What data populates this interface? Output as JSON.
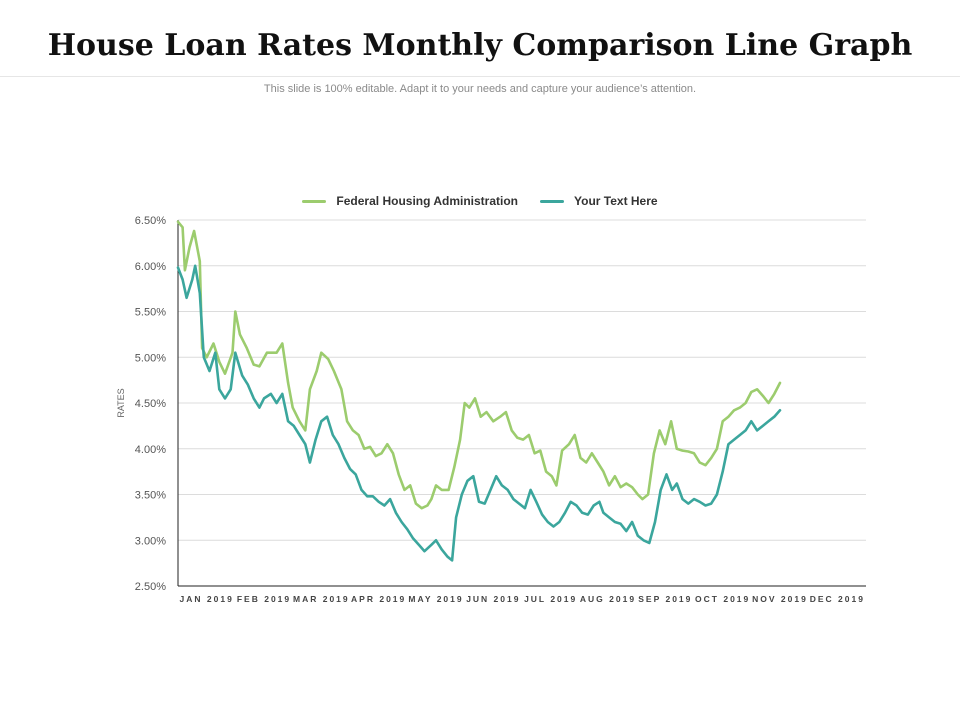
{
  "header": {
    "title": "House Loan Rates Monthly Comparison Line Graph",
    "subtitle": "This slide is 100% editable. Adapt it to your needs and capture your audience’s attention."
  },
  "chart_data": {
    "type": "line",
    "ylabel": "RATES",
    "xlabel": "",
    "ylim": [
      2.5,
      6.5
    ],
    "yticks": [
      "6.50%",
      "6.00%",
      "5.50%",
      "5.00%",
      "4.50%",
      "4.00%",
      "3.50%",
      "3.00%",
      "2.50%"
    ],
    "categories": [
      "JAN 2019",
      "FEB 2019",
      "MAR 2019",
      "APR 2019",
      "MAY 2019",
      "JUN 2019",
      "JUL 2019",
      "AUG 2019",
      "SEP 2019",
      "OCT 2019",
      "NOV 2019",
      "DEC 2019"
    ],
    "grid": true,
    "legend_position": "top-center",
    "series": [
      {
        "name": "Federal Housing Administration",
        "color": "#9ccc6e",
        "points": [
          [
            0.0,
            6.48
          ],
          [
            0.08,
            6.42
          ],
          [
            0.12,
            5.95
          ],
          [
            0.2,
            6.2
          ],
          [
            0.28,
            6.38
          ],
          [
            0.38,
            6.05
          ],
          [
            0.42,
            5.1
          ],
          [
            0.5,
            5.0
          ],
          [
            0.62,
            5.15
          ],
          [
            0.72,
            4.95
          ],
          [
            0.82,
            4.82
          ],
          [
            0.95,
            5.05
          ],
          [
            1.0,
            5.5
          ],
          [
            1.08,
            5.25
          ],
          [
            1.2,
            5.1
          ],
          [
            1.32,
            4.92
          ],
          [
            1.42,
            4.9
          ],
          [
            1.55,
            5.05
          ],
          [
            1.72,
            5.05
          ],
          [
            1.82,
            5.15
          ],
          [
            1.92,
            4.72
          ],
          [
            2.0,
            4.45
          ],
          [
            2.12,
            4.3
          ],
          [
            2.22,
            4.2
          ],
          [
            2.3,
            4.65
          ],
          [
            2.42,
            4.85
          ],
          [
            2.5,
            5.05
          ],
          [
            2.62,
            4.98
          ],
          [
            2.72,
            4.85
          ],
          [
            2.85,
            4.65
          ],
          [
            2.95,
            4.3
          ],
          [
            3.05,
            4.2
          ],
          [
            3.15,
            4.15
          ],
          [
            3.25,
            4.0
          ],
          [
            3.35,
            4.02
          ],
          [
            3.45,
            3.92
          ],
          [
            3.55,
            3.95
          ],
          [
            3.65,
            4.05
          ],
          [
            3.75,
            3.95
          ],
          [
            3.85,
            3.72
          ],
          [
            3.95,
            3.55
          ],
          [
            4.05,
            3.6
          ],
          [
            4.15,
            3.4
          ],
          [
            4.25,
            3.35
          ],
          [
            4.35,
            3.38
          ],
          [
            4.42,
            3.45
          ],
          [
            4.5,
            3.6
          ],
          [
            4.6,
            3.55
          ],
          [
            4.72,
            3.55
          ],
          [
            4.82,
            3.8
          ],
          [
            4.92,
            4.1
          ],
          [
            5.0,
            4.5
          ],
          [
            5.08,
            4.45
          ],
          [
            5.18,
            4.55
          ],
          [
            5.28,
            4.35
          ],
          [
            5.38,
            4.4
          ],
          [
            5.5,
            4.3
          ],
          [
            5.62,
            4.35
          ],
          [
            5.72,
            4.4
          ],
          [
            5.82,
            4.2
          ],
          [
            5.92,
            4.12
          ],
          [
            6.02,
            4.1
          ],
          [
            6.12,
            4.15
          ],
          [
            6.22,
            3.95
          ],
          [
            6.32,
            3.98
          ],
          [
            6.42,
            3.75
          ],
          [
            6.52,
            3.7
          ],
          [
            6.6,
            3.6
          ],
          [
            6.7,
            3.98
          ],
          [
            6.82,
            4.05
          ],
          [
            6.92,
            4.15
          ],
          [
            7.02,
            3.9
          ],
          [
            7.12,
            3.85
          ],
          [
            7.22,
            3.95
          ],
          [
            7.32,
            3.85
          ],
          [
            7.42,
            3.75
          ],
          [
            7.52,
            3.6
          ],
          [
            7.62,
            3.7
          ],
          [
            7.72,
            3.58
          ],
          [
            7.82,
            3.62
          ],
          [
            7.92,
            3.58
          ],
          [
            8.02,
            3.5
          ],
          [
            8.1,
            3.45
          ],
          [
            8.2,
            3.5
          ],
          [
            8.3,
            3.95
          ],
          [
            8.4,
            4.2
          ],
          [
            8.5,
            4.05
          ],
          [
            8.6,
            4.3
          ],
          [
            8.7,
            4.0
          ],
          [
            8.8,
            3.98
          ],
          [
            8.9,
            3.97
          ],
          [
            9.0,
            3.95
          ],
          [
            9.1,
            3.85
          ],
          [
            9.2,
            3.82
          ],
          [
            9.3,
            3.9
          ],
          [
            9.4,
            4.0
          ],
          [
            9.5,
            4.3
          ],
          [
            9.6,
            4.35
          ],
          [
            9.7,
            4.42
          ],
          [
            9.8,
            4.45
          ],
          [
            9.9,
            4.5
          ],
          [
            10.0,
            4.62
          ],
          [
            10.1,
            4.65
          ],
          [
            10.2,
            4.58
          ],
          [
            10.3,
            4.5
          ],
          [
            10.4,
            4.6
          ],
          [
            10.5,
            4.72
          ]
        ]
      },
      {
        "name": "Your Text Here",
        "color": "#3ba69d",
        "points": [
          [
            0.0,
            5.98
          ],
          [
            0.08,
            5.85
          ],
          [
            0.15,
            5.65
          ],
          [
            0.25,
            5.85
          ],
          [
            0.3,
            6.0
          ],
          [
            0.38,
            5.7
          ],
          [
            0.45,
            5.0
          ],
          [
            0.55,
            4.85
          ],
          [
            0.65,
            5.05
          ],
          [
            0.72,
            4.65
          ],
          [
            0.82,
            4.55
          ],
          [
            0.92,
            4.65
          ],
          [
            1.0,
            5.05
          ],
          [
            1.12,
            4.8
          ],
          [
            1.22,
            4.7
          ],
          [
            1.32,
            4.55
          ],
          [
            1.42,
            4.45
          ],
          [
            1.5,
            4.55
          ],
          [
            1.62,
            4.6
          ],
          [
            1.72,
            4.5
          ],
          [
            1.82,
            4.6
          ],
          [
            1.92,
            4.3
          ],
          [
            2.02,
            4.25
          ],
          [
            2.12,
            4.15
          ],
          [
            2.22,
            4.05
          ],
          [
            2.3,
            3.85
          ],
          [
            2.4,
            4.1
          ],
          [
            2.5,
            4.3
          ],
          [
            2.6,
            4.35
          ],
          [
            2.7,
            4.15
          ],
          [
            2.8,
            4.05
          ],
          [
            2.9,
            3.9
          ],
          [
            3.0,
            3.78
          ],
          [
            3.1,
            3.72
          ],
          [
            3.2,
            3.55
          ],
          [
            3.3,
            3.48
          ],
          [
            3.4,
            3.48
          ],
          [
            3.5,
            3.42
          ],
          [
            3.6,
            3.38
          ],
          [
            3.7,
            3.45
          ],
          [
            3.8,
            3.3
          ],
          [
            3.9,
            3.2
          ],
          [
            4.0,
            3.12
          ],
          [
            4.1,
            3.02
          ],
          [
            4.2,
            2.95
          ],
          [
            4.3,
            2.88
          ],
          [
            4.42,
            2.95
          ],
          [
            4.5,
            3.0
          ],
          [
            4.6,
            2.9
          ],
          [
            4.7,
            2.82
          ],
          [
            4.78,
            2.78
          ],
          [
            4.85,
            3.25
          ],
          [
            4.95,
            3.5
          ],
          [
            5.05,
            3.65
          ],
          [
            5.15,
            3.7
          ],
          [
            5.25,
            3.42
          ],
          [
            5.35,
            3.4
          ],
          [
            5.45,
            3.55
          ],
          [
            5.55,
            3.7
          ],
          [
            5.65,
            3.6
          ],
          [
            5.75,
            3.55
          ],
          [
            5.85,
            3.45
          ],
          [
            5.95,
            3.4
          ],
          [
            6.05,
            3.35
          ],
          [
            6.15,
            3.55
          ],
          [
            6.25,
            3.42
          ],
          [
            6.35,
            3.28
          ],
          [
            6.45,
            3.2
          ],
          [
            6.55,
            3.15
          ],
          [
            6.65,
            3.2
          ],
          [
            6.75,
            3.3
          ],
          [
            6.85,
            3.42
          ],
          [
            6.95,
            3.38
          ],
          [
            7.05,
            3.3
          ],
          [
            7.15,
            3.28
          ],
          [
            7.25,
            3.38
          ],
          [
            7.35,
            3.42
          ],
          [
            7.42,
            3.3
          ],
          [
            7.52,
            3.25
          ],
          [
            7.62,
            3.2
          ],
          [
            7.72,
            3.18
          ],
          [
            7.82,
            3.1
          ],
          [
            7.92,
            3.2
          ],
          [
            8.02,
            3.05
          ],
          [
            8.12,
            3.0
          ],
          [
            8.22,
            2.97
          ],
          [
            8.32,
            3.2
          ],
          [
            8.42,
            3.55
          ],
          [
            8.52,
            3.72
          ],
          [
            8.62,
            3.55
          ],
          [
            8.7,
            3.62
          ],
          [
            8.8,
            3.45
          ],
          [
            8.9,
            3.4
          ],
          [
            9.0,
            3.45
          ],
          [
            9.1,
            3.42
          ],
          [
            9.2,
            3.38
          ],
          [
            9.3,
            3.4
          ],
          [
            9.4,
            3.5
          ],
          [
            9.5,
            3.75
          ],
          [
            9.6,
            4.05
          ],
          [
            9.7,
            4.1
          ],
          [
            9.8,
            4.15
          ],
          [
            9.9,
            4.2
          ],
          [
            10.0,
            4.3
          ],
          [
            10.1,
            4.2
          ],
          [
            10.2,
            4.25
          ],
          [
            10.3,
            4.3
          ],
          [
            10.4,
            4.35
          ],
          [
            10.5,
            4.42
          ]
        ]
      }
    ]
  }
}
